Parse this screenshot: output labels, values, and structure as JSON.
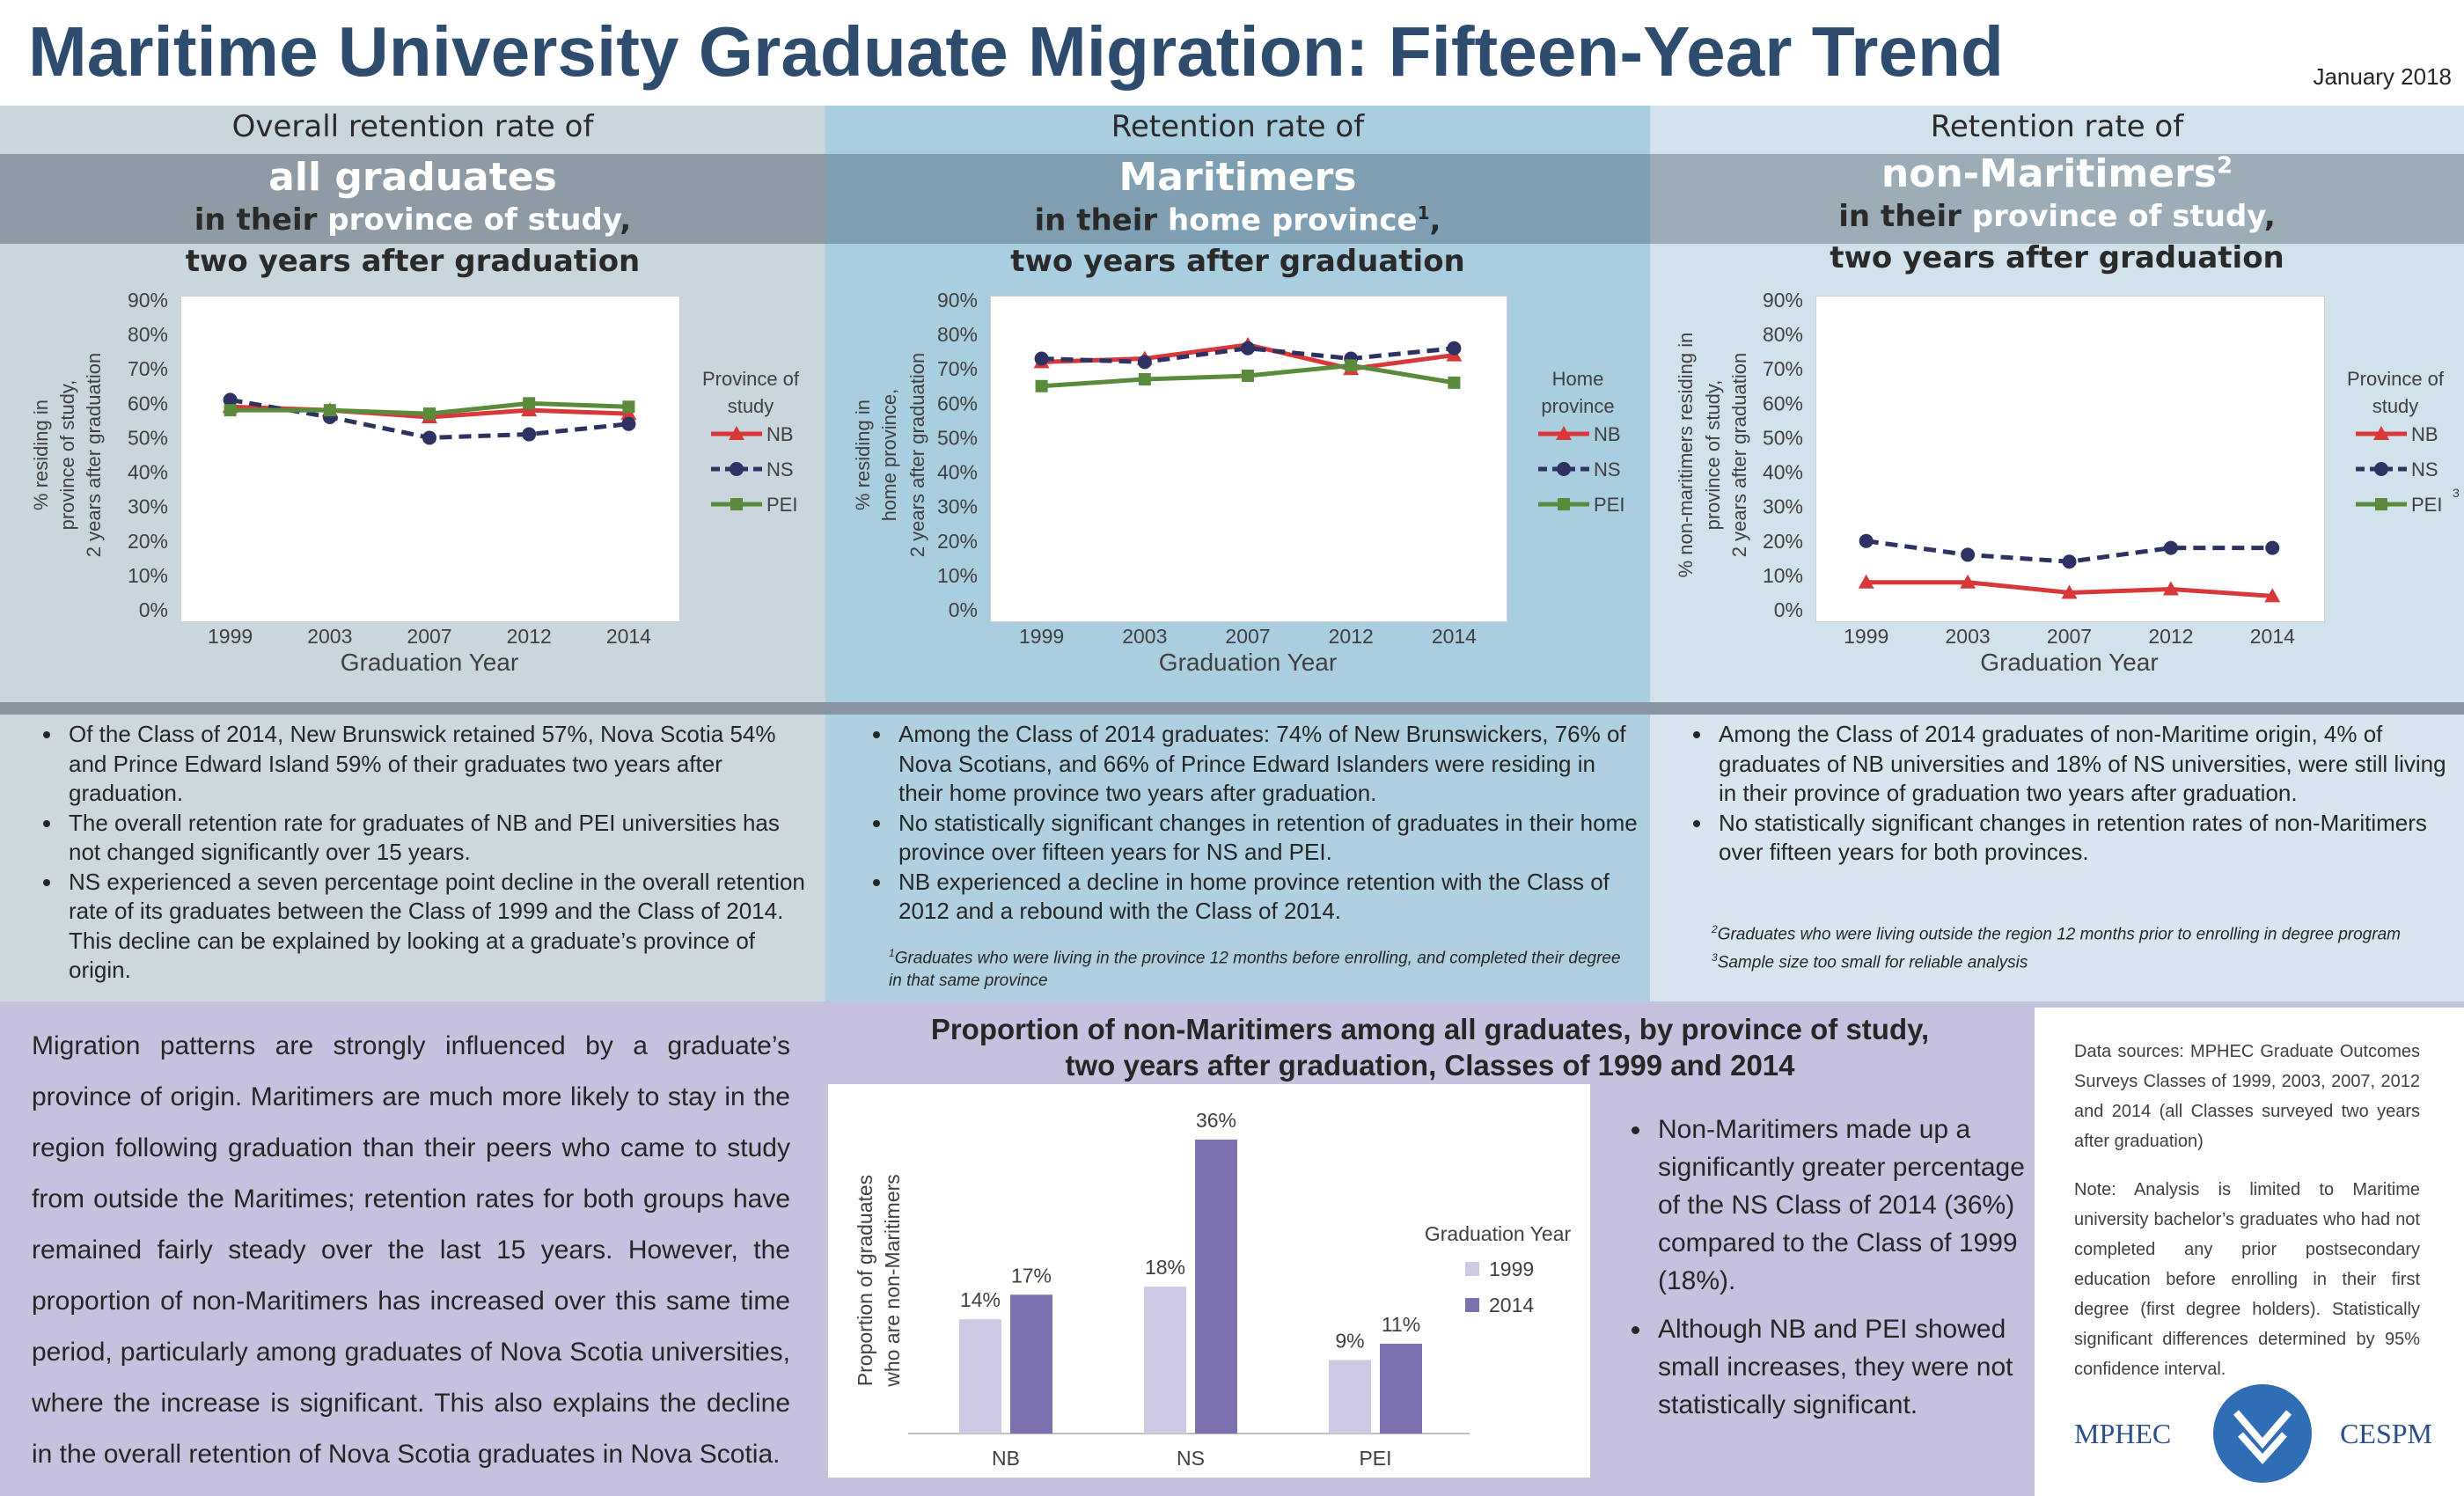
{
  "header": {
    "title": "Maritime University Graduate Migration: Fifteen-Year Trend",
    "date": "January 2018"
  },
  "panels": [
    {
      "heading": [
        "Overall retention rate of",
        "all graduates",
        "in their ",
        "province of study",
        ",",
        "two years after graduation"
      ],
      "bullets": [
        "Of the Class of 2014, New Brunswick retained 57%, Nova Scotia 54% and Prince Edward Island 59% of their graduates two years after graduation.",
        "The overall retention rate for graduates of NB and PEI universities has not changed significantly over 15 years.",
        "NS experienced a seven percentage point decline in the overall retention rate of its graduates between the Class of 1999 and the Class of 2014.  This decline can be explained by looking at a graduate’s province of origin."
      ],
      "footnotes": []
    },
    {
      "heading": [
        "Retention rate of",
        "Maritimers",
        "in their ",
        "home province",
        "1",
        ",",
        "two years after graduation"
      ],
      "bullets": [
        "Among the Class of 2014 graduates: 74% of New Brunswickers, 76% of Nova Scotians, and 66% of Prince Edward Islanders were residing in their home province two years after graduation.",
        "No statistically significant changes in retention of graduates in their home province over fifteen years for NS and PEI.",
        "NB experienced a decline in home province retention with the Class of 2012 and a rebound with the Class of 2014."
      ],
      "footnotes": [
        {
          "mark": "1",
          "text": "Graduates who were living in the province 12 months before enrolling, and completed their degree in that same province"
        }
      ]
    },
    {
      "heading": [
        "Retention rate of",
        "non-Maritimers",
        "2",
        "in their ",
        "province of study",
        ",",
        "two years after graduation"
      ],
      "bullets": [
        "Among the Class of 2014 graduates of non-Maritime origin, 4% of graduates of NB universities and 18% of NS universities, were still living in their province of graduation two years after graduation.",
        "No statistically significant changes in retention rates of non-Maritimers over fifteen years for both provinces."
      ],
      "footnotes": [
        {
          "mark": "2",
          "text": "Graduates who were living outside the region 12 months prior to enrolling in degree program"
        },
        {
          "mark": "3",
          "text": "Sample size too small for reliable analysis"
        }
      ]
    }
  ],
  "chart_data": [
    {
      "type": "line",
      "categories": [
        "1999",
        "2003",
        "2007",
        "2012",
        "2014"
      ],
      "x_label": "Graduation Year",
      "y_label": [
        "% residing in",
        "province of study,",
        "2 years after graduation"
      ],
      "ylim": [
        0,
        90
      ],
      "yticks": [
        {
          "value": 0,
          "label": "0%"
        },
        {
          "value": 10,
          "label": "10%"
        },
        {
          "value": 20,
          "label": "20%"
        },
        {
          "value": 30,
          "label": "30%"
        },
        {
          "value": 40,
          "label": "40%"
        },
        {
          "value": 50,
          "label": "50%"
        },
        {
          "value": 60,
          "label": "60%"
        },
        {
          "value": 70,
          "label": "70%"
        },
        {
          "value": 80,
          "label": "80%"
        },
        {
          "value": 90,
          "label": "90%"
        }
      ],
      "legend_title": [
        "Province of",
        "study"
      ],
      "series": [
        {
          "name": "NB",
          "color": "#d9383a",
          "marker": "triangle",
          "dashed": false,
          "values": [
            59,
            58,
            56,
            58,
            57
          ]
        },
        {
          "name": "NS",
          "color": "#2d3262",
          "marker": "circle",
          "dashed": true,
          "values": [
            61,
            56,
            50,
            51,
            54
          ]
        },
        {
          "name": "PEI",
          "color": "#5a8a3c",
          "marker": "square",
          "dashed": false,
          "values": [
            58,
            58,
            57,
            60,
            59
          ]
        }
      ]
    },
    {
      "type": "line",
      "categories": [
        "1999",
        "2003",
        "2007",
        "2012",
        "2014"
      ],
      "x_label": "Graduation Year",
      "y_label": [
        "% residing in",
        "home province,",
        "2 years after graduation"
      ],
      "ylim": [
        0,
        90
      ],
      "yticks": [
        {
          "value": 0,
          "label": "0%"
        },
        {
          "value": 10,
          "label": "10%"
        },
        {
          "value": 20,
          "label": "20%"
        },
        {
          "value": 30,
          "label": "30%"
        },
        {
          "value": 40,
          "label": "40%"
        },
        {
          "value": 50,
          "label": "50%"
        },
        {
          "value": 60,
          "label": "60%"
        },
        {
          "value": 70,
          "label": "70%"
        },
        {
          "value": 80,
          "label": "80%"
        },
        {
          "value": 90,
          "label": "90%"
        }
      ],
      "legend_title": [
        "Home",
        "province"
      ],
      "series": [
        {
          "name": "NB",
          "color": "#d9383a",
          "marker": "triangle",
          "dashed": false,
          "values": [
            72,
            73,
            77,
            70,
            74
          ]
        },
        {
          "name": "NS",
          "color": "#2d3262",
          "marker": "circle",
          "dashed": true,
          "values": [
            73,
            72,
            76,
            73,
            76
          ]
        },
        {
          "name": "PEI",
          "color": "#5a8a3c",
          "marker": "square",
          "dashed": false,
          "values": [
            65,
            67,
            68,
            71,
            66
          ]
        }
      ]
    },
    {
      "type": "line",
      "categories": [
        "1999",
        "2003",
        "2007",
        "2012",
        "2014"
      ],
      "x_label": "Graduation Year",
      "y_label": [
        "% non-maritimers residing in",
        "province of study,",
        "2 years after graduation"
      ],
      "ylim": [
        0,
        90
      ],
      "yticks": [
        {
          "value": 0,
          "label": "0%"
        },
        {
          "value": 10,
          "label": "10%"
        },
        {
          "value": 20,
          "label": "20%"
        },
        {
          "value": 30,
          "label": "30%"
        },
        {
          "value": 40,
          "label": "40%"
        },
        {
          "value": 50,
          "label": "50%"
        },
        {
          "value": 60,
          "label": "60%"
        },
        {
          "value": 70,
          "label": "70%"
        },
        {
          "value": 80,
          "label": "80%"
        },
        {
          "value": 90,
          "label": "90%"
        }
      ],
      "legend_title": [
        "Province of",
        "study"
      ],
      "series": [
        {
          "name": "NB",
          "color": "#d9383a",
          "marker": "triangle",
          "dashed": false,
          "values": [
            8,
            8,
            5,
            6,
            4
          ]
        },
        {
          "name": "NS",
          "color": "#2d3262",
          "marker": "circle",
          "dashed": true,
          "values": [
            20,
            16,
            14,
            18,
            18
          ]
        },
        {
          "name": "PEI",
          "name_note": "3",
          "color": "#5a8a3c",
          "marker": "square",
          "dashed": false,
          "values": [
            null,
            null,
            null,
            null,
            null
          ]
        }
      ]
    },
    {
      "type": "bar",
      "title": [
        "Proportion of non-Maritimers among all graduates, by province of study,",
        "two years after graduation, Classes of 1999 and 2014"
      ],
      "categories": [
        "NB",
        "NS",
        "PEI"
      ],
      "y_label": [
        "Proportion of graduates",
        "who are non-Maritimers"
      ],
      "legend_title": "Graduation Year",
      "series": [
        {
          "name": "1999",
          "color": "#cdc9e3",
          "values": [
            14,
            18,
            9
          ],
          "value_labels": [
            "14%",
            "18%",
            "9%"
          ]
        },
        {
          "name": "2014",
          "color": "#7d70b0",
          "values": [
            17,
            36,
            11
          ],
          "value_labels": [
            "17%",
            "36%",
            "11%"
          ]
        }
      ]
    }
  ],
  "bottom": {
    "paragraph": "Migration patterns are strongly influenced by a graduate’s province of origin. Maritimers are much more likely to stay in the region following graduation than their peers who came to study from outside the Maritimes; retention rates for both groups have remained fairly steady over the last 15 years.  However, the proportion of non-Maritimers has increased over this same time period, particularly among graduates of Nova Scotia universities, where the increase is significant. This also explains the decline in the overall retention of Nova Scotia graduates in Nova Scotia.",
    "bullets": [
      "Non-Maritimers made up a significantly greater percentage of the NS Class of 2014 (36%) compared to the Class of 1999 (18%).",
      "Although NB and PEI showed small increases, they were not statistically significant."
    ],
    "sources": "Data sources: MPHEC Graduate Outcomes Surveys Classes of 1999, 2003, 2007, 2012 and 2014 (all Classes surveyed two years after graduation)",
    "note": "Note: Analysis is limited to Maritime university bachelor’s graduates who had not completed any prior postsecondary education before enrolling in their first degree (first degree holders). Statistically significant differences determined by 95% confidence interval.",
    "logo": [
      "MPHEC",
      "CESPM"
    ]
  }
}
